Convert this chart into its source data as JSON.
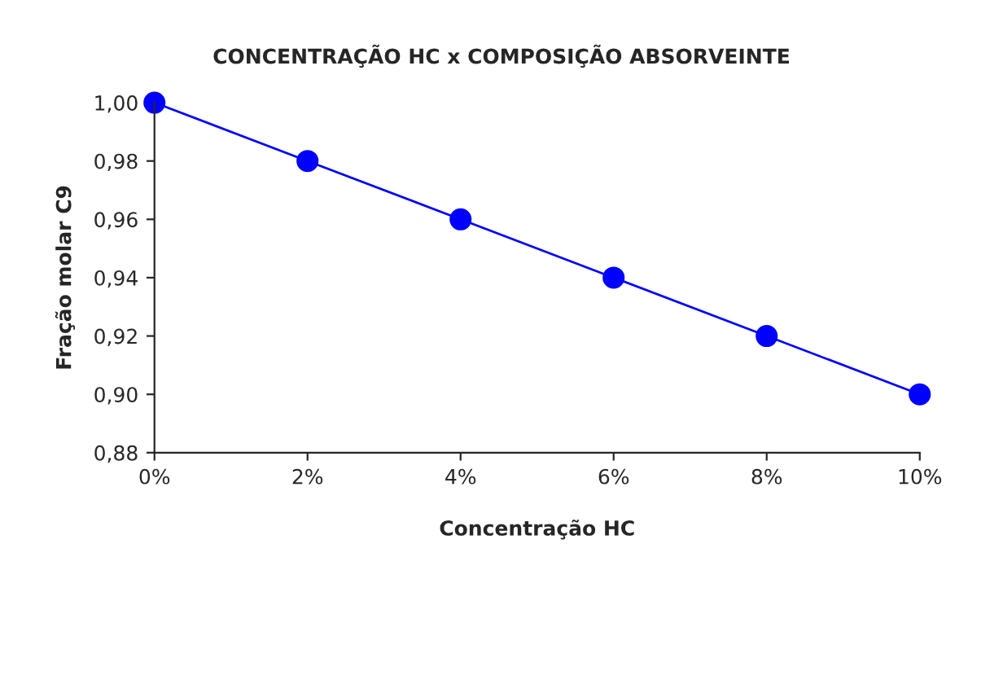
{
  "chart_data": {
    "type": "line",
    "title": "CONCENTRAÇÃO HC x COMPOSIÇÃO ABSORVEINTE",
    "xlabel": "Concentração HC",
    "ylabel": "Fração molar C9",
    "x": [
      0,
      2,
      4,
      6,
      8,
      10
    ],
    "series": [
      {
        "color": "#0000ff",
        "values": [
          1.0,
          0.98,
          0.96,
          0.94,
          0.92,
          0.9
        ]
      }
    ],
    "xlim": [
      0,
      10
    ],
    "xticks": [
      {
        "value": 0,
        "label": "0%"
      },
      {
        "value": 2,
        "label": "2%"
      },
      {
        "value": 4,
        "label": "4%"
      },
      {
        "value": 6,
        "label": "6%"
      },
      {
        "value": 8,
        "label": "8%"
      },
      {
        "value": 10,
        "label": "10%"
      }
    ],
    "ylim": [
      0.88,
      1.0
    ],
    "yticks": [
      {
        "value": 0.88,
        "label": "0,88"
      },
      {
        "value": 0.9,
        "label": "0,90"
      },
      {
        "value": 0.92,
        "label": "0,92"
      },
      {
        "value": 0.94,
        "label": "0,94"
      },
      {
        "value": 0.96,
        "label": "0,96"
      },
      {
        "value": 0.98,
        "label": "0,98"
      },
      {
        "value": 1.0,
        "label": "1,00"
      }
    ],
    "grid": false,
    "marker": "circle",
    "line_style": "solid"
  }
}
